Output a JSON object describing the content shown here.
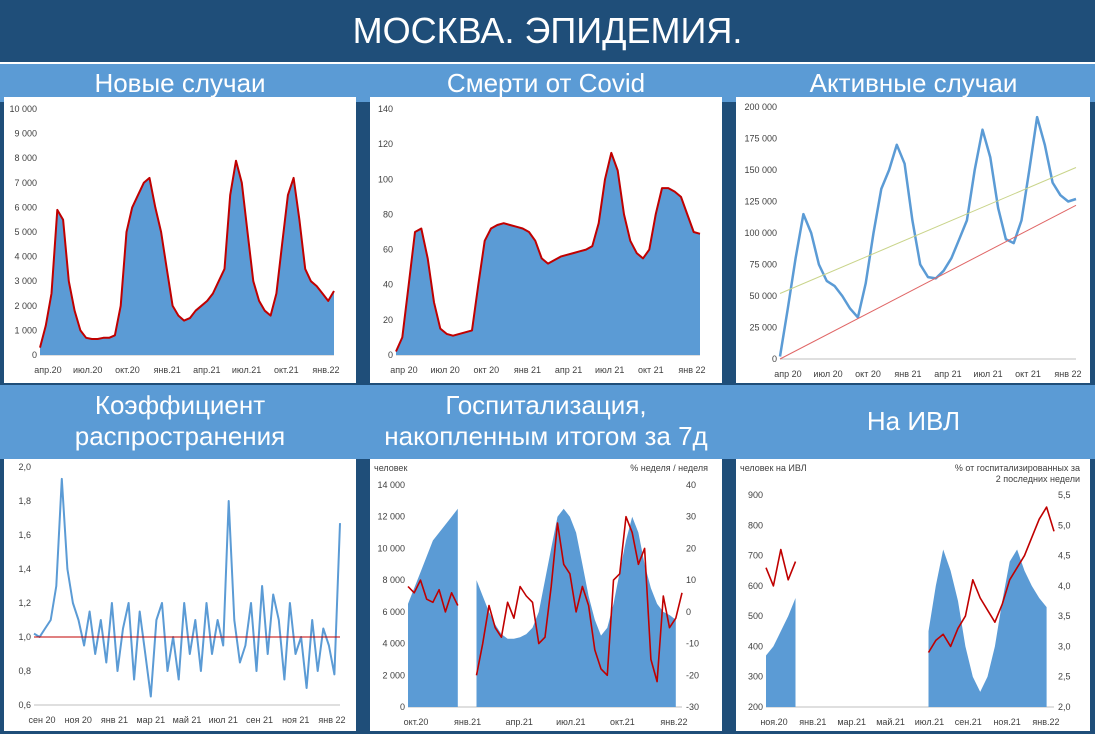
{
  "title": "МОСКВА. ЭПИДЕМИЯ.",
  "colors": {
    "title_bg": "#1f4e79",
    "band_bg": "#5b9bd5",
    "area": "#5b9bd5",
    "red": "#c00000",
    "line_blue": "#5b9bd5"
  },
  "chart_data": [
    {
      "id": "new-cases",
      "type": "area",
      "title": "Новые случаи",
      "ylim": [
        0,
        10000
      ],
      "yticks": [
        "0",
        "1 000",
        "2 000",
        "3 000",
        "4 000",
        "5 000",
        "6 000",
        "7 000",
        "8 000",
        "9 000",
        "10 000"
      ],
      "xticks": [
        "апр.20",
        "июл.20",
        "окт.20",
        "янв.21",
        "апр.21",
        "июл.21",
        "окт.21",
        "янв.22"
      ],
      "series": [
        {
          "kind": "area",
          "values": [
            300,
            1200,
            2500,
            5900,
            5500,
            3000,
            1800,
            1000,
            700,
            650,
            650,
            700,
            700,
            800,
            2000,
            5000,
            6000,
            6500,
            7000,
            7200,
            6000,
            5000,
            3500,
            2000,
            1600,
            1400,
            1500,
            1800,
            2000,
            2200,
            2500,
            3000,
            3500,
            6500,
            7900,
            7000,
            5000,
            3000,
            2200,
            1800,
            1600,
            2500,
            4500,
            6500,
            7200,
            5500,
            3500,
            3000,
            2800,
            2500,
            2200,
            2600
          ]
        },
        {
          "kind": "line",
          "values": [
            300,
            1200,
            2500,
            5900,
            5500,
            3000,
            1800,
            1000,
            700,
            650,
            650,
            700,
            700,
            800,
            2000,
            5000,
            6000,
            6500,
            7000,
            7200,
            6000,
            5000,
            3500,
            2000,
            1600,
            1400,
            1500,
            1800,
            2000,
            2200,
            2500,
            3000,
            3500,
            6500,
            7900,
            7000,
            5000,
            3000,
            2200,
            1800,
            1600,
            2500,
            4500,
            6500,
            7200,
            5500,
            3500,
            3000,
            2800,
            2500,
            2200,
            2600
          ]
        }
      ]
    },
    {
      "id": "deaths",
      "type": "area",
      "title": "Смерти от Covid",
      "ylim": [
        0,
        140
      ],
      "yticks": [
        "0",
        "20",
        "40",
        "60",
        "80",
        "100",
        "120",
        "140"
      ],
      "xticks": [
        "апр 20",
        "июл 20",
        "окт 20",
        "янв 21",
        "апр 21",
        "июл 21",
        "окт 21",
        "янв 22"
      ],
      "series": [
        {
          "kind": "area",
          "values": [
            2,
            10,
            40,
            70,
            72,
            55,
            30,
            15,
            12,
            11,
            12,
            13,
            14,
            40,
            65,
            72,
            74,
            75,
            74,
            73,
            72,
            70,
            65,
            55,
            52,
            54,
            56,
            57,
            58,
            59,
            60,
            62,
            75,
            100,
            115,
            105,
            80,
            65,
            58,
            55,
            60,
            80,
            95,
            95,
            93,
            90,
            80,
            70,
            69
          ]
        },
        {
          "kind": "line",
          "values": [
            2,
            10,
            40,
            70,
            72,
            55,
            30,
            15,
            12,
            11,
            12,
            13,
            14,
            40,
            65,
            72,
            74,
            75,
            74,
            73,
            72,
            70,
            65,
            55,
            52,
            54,
            56,
            57,
            58,
            59,
            60,
            62,
            75,
            100,
            115,
            105,
            80,
            65,
            58,
            55,
            60,
            80,
            95,
            95,
            93,
            90,
            80,
            70,
            69
          ]
        }
      ]
    },
    {
      "id": "active",
      "type": "line",
      "title": "Активные случаи",
      "ylim": [
        0,
        200000
      ],
      "yticks": [
        "0",
        "25 000",
        "50 000",
        "75 000",
        "100 000",
        "125 000",
        "150 000",
        "175 000",
        "200 000"
      ],
      "xticks": [
        "апр 20",
        "июл 20",
        "окт 20",
        "янв 21",
        "апр 21",
        "июл 21",
        "окт 21",
        "янв 22"
      ],
      "series": [
        {
          "kind": "line",
          "values": [
            2000,
            40000,
            80000,
            115000,
            100000,
            75000,
            62000,
            58000,
            50000,
            40000,
            33000,
            60000,
            100000,
            135000,
            150000,
            170000,
            155000,
            110000,
            75000,
            65000,
            64000,
            70000,
            80000,
            95000,
            110000,
            150000,
            182000,
            160000,
            120000,
            95000,
            92000,
            110000,
            150000,
            192000,
            170000,
            140000,
            130000,
            125000,
            127000
          ]
        },
        {
          "kind": "line",
          "values": [
            52000,
            152000
          ]
        },
        {
          "kind": "line",
          "values": [
            0,
            122000
          ]
        }
      ]
    },
    {
      "id": "rt",
      "type": "line",
      "title": "Коэффициент распространения",
      "ylim": [
        0.6,
        2.0
      ],
      "yticks": [
        "0,6",
        "0,8",
        "1,0",
        "1,2",
        "1,4",
        "1,6",
        "1,8",
        "2,0"
      ],
      "xticks": [
        "сен 20",
        "ноя 20",
        "янв 21",
        "мар 21",
        "май 21",
        "июл 21",
        "сен 21",
        "ноя 21",
        "янв 22"
      ],
      "series": [
        {
          "kind": "line",
          "values": [
            1.02,
            1.0,
            1.05,
            1.1,
            1.3,
            1.93,
            1.4,
            1.2,
            1.1,
            0.95,
            1.15,
            0.9,
            1.1,
            0.85,
            1.2,
            0.8,
            1.05,
            1.2,
            0.75,
            1.15,
            0.9,
            0.65,
            1.1,
            1.2,
            0.8,
            1.0,
            0.75,
            1.2,
            0.9,
            1.1,
            0.8,
            1.2,
            0.9,
            1.1,
            0.95,
            1.8,
            1.1,
            0.85,
            0.95,
            1.2,
            0.8,
            1.3,
            0.9,
            1.25,
            1.1,
            0.75,
            1.2,
            0.9,
            1.0,
            0.7,
            1.1,
            0.8,
            1.05,
            0.95,
            0.78,
            1.67
          ]
        },
        {
          "kind": "line",
          "values": [
            1.0,
            1.0
          ]
        }
      ]
    },
    {
      "id": "hosp",
      "type": "area",
      "title": "Госпитализация, накопленным итогом за 7д",
      "ylabel": "человек",
      "y2label": "% неделя / неделя",
      "ylim": [
        0,
        14000
      ],
      "y2lim": [
        -30,
        40
      ],
      "yticks": [
        "0",
        "2 000",
        "4 000",
        "6 000",
        "8 000",
        "10 000",
        "12 000",
        "14 000"
      ],
      "y2ticks": [
        "-30",
        "-20",
        "-10",
        "0",
        "10",
        "20",
        "30",
        "40"
      ],
      "xticks": [
        "окт.20",
        "янв.21",
        "апр.21",
        "июл.21",
        "окт.21",
        "янв.22"
      ],
      "series": [
        {
          "kind": "area",
          "values": [
            6500,
            7500,
            8500,
            9500,
            10500,
            11000,
            11500,
            12000,
            12500,
            null,
            null,
            8000,
            7000,
            6000,
            5200,
            4600,
            4300,
            4300,
            4400,
            4600,
            5000,
            6000,
            8000,
            10000,
            12000,
            12500,
            12000,
            11000,
            9000,
            7000,
            5500,
            4500,
            5000,
            6500,
            8500,
            10500,
            12000,
            11000,
            9000,
            7500,
            6500,
            6000,
            5800,
            5500,
            null
          ]
        },
        {
          "kind": "line",
          "values": [
            8,
            6,
            10,
            4,
            3,
            7,
            0,
            6,
            2,
            null,
            null,
            -20,
            -10,
            2,
            -5,
            -8,
            3,
            -2,
            8,
            5,
            3,
            -10,
            -8,
            8,
            28,
            15,
            12,
            0,
            8,
            2,
            -12,
            -18,
            -20,
            10,
            12,
            30,
            25,
            15,
            20,
            -15,
            -22,
            5,
            -5,
            -2,
            6
          ]
        }
      ]
    },
    {
      "id": "ventilation",
      "type": "area",
      "title": "На ИВЛ",
      "ylabel": "человек на ИВЛ",
      "y2label": "% от госпитализированных за 2 последних недели",
      "ylim": [
        200,
        900
      ],
      "y2lim": [
        2.0,
        5.5
      ],
      "yticks": [
        "200",
        "300",
        "400",
        "500",
        "600",
        "700",
        "800",
        "900"
      ],
      "y2ticks": [
        "2,0",
        "2,5",
        "3,0",
        "3,5",
        "4,0",
        "4,5",
        "5,0",
        "5,5"
      ],
      "xticks": [
        "ноя.20",
        "янв.21",
        "мар.21",
        "май.21",
        "июл.21",
        "сен.21",
        "ноя.21",
        "янв.22"
      ],
      "series": [
        {
          "kind": "area",
          "values": [
            370,
            400,
            450,
            500,
            560,
            null,
            null,
            null,
            null,
            null,
            null,
            null,
            null,
            null,
            null,
            null,
            null,
            null,
            null,
            null,
            null,
            null,
            450,
            600,
            720,
            650,
            550,
            400,
            300,
            250,
            300,
            400,
            550,
            680,
            720,
            650,
            600,
            560,
            530,
            null
          ]
        },
        {
          "kind": "line",
          "values": [
            4.3,
            4.0,
            4.6,
            4.1,
            4.4,
            null,
            null,
            null,
            null,
            null,
            null,
            null,
            null,
            null,
            null,
            null,
            null,
            null,
            null,
            null,
            null,
            null,
            2.9,
            3.1,
            3.2,
            3.0,
            3.3,
            3.5,
            4.1,
            3.8,
            3.6,
            3.4,
            3.7,
            4.1,
            4.3,
            4.5,
            4.8,
            5.1,
            5.3,
            4.9
          ]
        }
      ]
    }
  ]
}
